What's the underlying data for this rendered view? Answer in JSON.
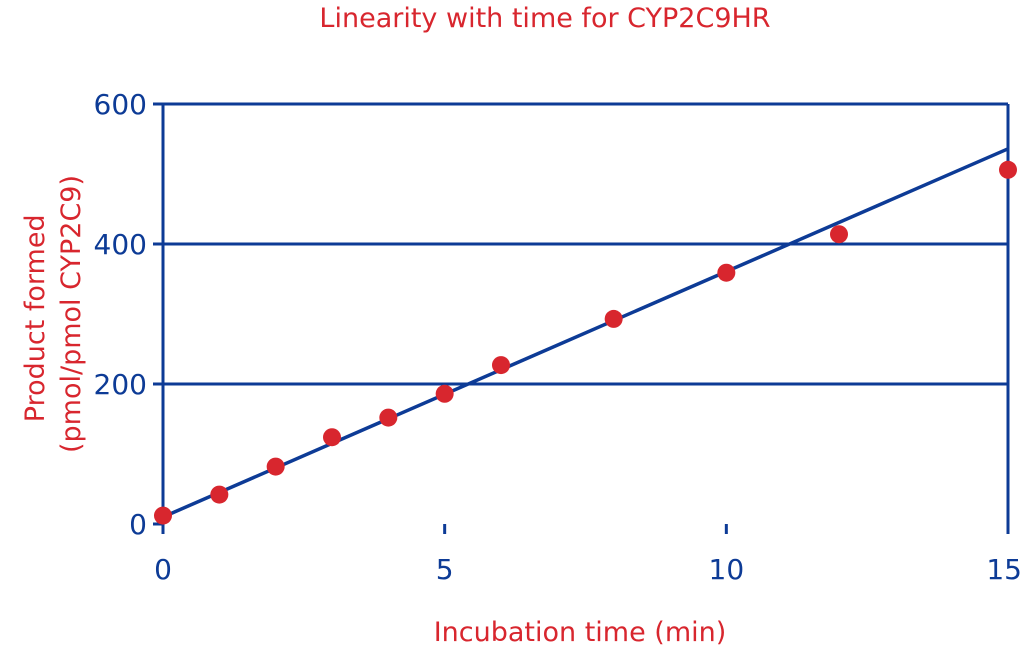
{
  "chart_data": {
    "type": "scatter",
    "title": "Linearity with time for CYP2C9HR",
    "xlabel": "Incubation time (min)",
    "ylabel_lines": [
      "Product formed",
      "(pmol/pmol CYP2C9)"
    ],
    "xlim": [
      0,
      15
    ],
    "ylim": [
      0,
      600
    ],
    "x_ticks": [
      0,
      5,
      10,
      15
    ],
    "y_ticks": [
      0,
      200,
      400,
      600
    ],
    "grid": "horizontal",
    "points": [
      {
        "x": 0,
        "y": 12
      },
      {
        "x": 1,
        "y": 42
      },
      {
        "x": 2,
        "y": 82
      },
      {
        "x": 3,
        "y": 124
      },
      {
        "x": 4,
        "y": 152
      },
      {
        "x": 5,
        "y": 186
      },
      {
        "x": 6,
        "y": 227
      },
      {
        "x": 8,
        "y": 293
      },
      {
        "x": 10,
        "y": 359
      },
      {
        "x": 12,
        "y": 414
      },
      {
        "x": 15,
        "y": 506
      }
    ],
    "fit_line": {
      "x": [
        0,
        15
      ],
      "y": [
        10,
        536
      ]
    },
    "colors": {
      "title": "#d8262e",
      "axis_labels": "#d8262e",
      "points": "#d8262e",
      "axes": "#0d3b96",
      "tick_labels": "#0d3b96",
      "fit_line": "#0d3b96"
    }
  }
}
